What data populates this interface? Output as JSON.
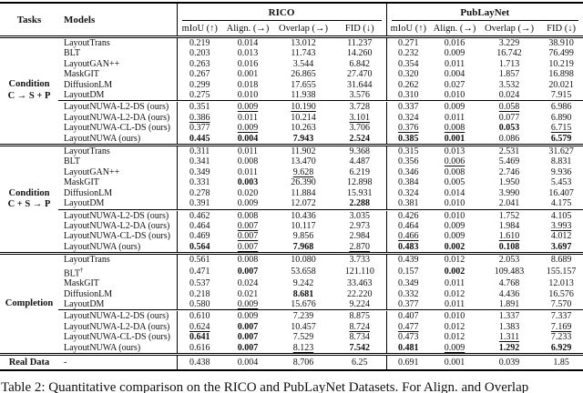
{
  "cell_encoding": "plain string = normal; prefix 'b:' = bold (best); prefix 'u:' = underlined (second best)",
  "table": {
    "header": {
      "tasks": "Tasks",
      "models": "Models",
      "datasets": [
        {
          "name": "RICO",
          "metrics": [
            "mIoU (↑)",
            "Align. (→)",
            "Overlap (→)",
            "FID (↓)"
          ]
        },
        {
          "name": "PubLayNet",
          "metrics": [
            "mIoU (↑)",
            "Align. (→)",
            "Overlap (→)",
            "FID (↓)"
          ]
        }
      ]
    },
    "groups": [
      {
        "task": [
          "Condition",
          "C → S + P"
        ],
        "baselines": [
          {
            "model": "LayoutTrans",
            "cells": [
              "0.219",
              "0.014",
              "13.012",
              "11.237",
              "0.271",
              "0.016",
              "3.229",
              "38.910"
            ]
          },
          {
            "model": "BLT",
            "cells": [
              "0.203",
              "0.013",
              "11.743",
              "14.260",
              "0.232",
              "0.009",
              "16.742",
              "76.499"
            ]
          },
          {
            "model": "LayoutGAN++",
            "cells": [
              "0.263",
              "0.016",
              "3.544",
              "6.842",
              "0.354",
              "0.011",
              "1.713",
              "10.219"
            ]
          },
          {
            "model": "MaskGIT",
            "cells": [
              "0.267",
              "0.001",
              "26.865",
              "27.470",
              "0.320",
              "0.004",
              "1.857",
              "16.898"
            ]
          },
          {
            "model": "DiffusionLM",
            "cells": [
              "0.299",
              "0.018",
              "17.655",
              "31.644",
              "0.262",
              "0.027",
              "3.532",
              "20.021"
            ]
          },
          {
            "model": "LayoutDM",
            "cells": [
              "0.275",
              "0.010",
              "11.938",
              "3.576",
              "0.310",
              "0.010",
              "0.024",
              "7.915"
            ]
          }
        ],
        "ours": [
          {
            "model": "LayoutNUWA-L2-DS (ours)",
            "cells": [
              "0.351",
              "u:0.009",
              "u:10.190",
              "3.728",
              "0.337",
              "0.009",
              "u:0.058",
              "6.986"
            ]
          },
          {
            "model": "LayoutNUWA-L2-DA (ours)",
            "cells": [
              "u:0.386",
              "0.011",
              "10.214",
              "u:3.101",
              "0.324",
              "0.011",
              "0.077",
              "6.890"
            ]
          },
          {
            "model": "LayoutNUWA-CL-DS (ours)",
            "cells": [
              "0.377",
              "u:0.009",
              "10.263",
              "3.706",
              "u:0.376",
              "u:0.008",
              "b:0.053",
              "u:6.715"
            ]
          },
          {
            "model": "LayoutNUWA (ours)",
            "cells": [
              "b:0.445",
              "b:0.004",
              "b:7.943",
              "b:2.524",
              "b:0.385",
              "b:0.001",
              "0.086",
              "b:6.579"
            ]
          }
        ]
      },
      {
        "task": [
          "Condition",
          "C + S → P"
        ],
        "baselines": [
          {
            "model": "LayoutTrans",
            "cells": [
              "0.311",
              "0.011",
              "11.902",
              "9.368",
              "0.315",
              "0.013",
              "2.531",
              "31.627"
            ]
          },
          {
            "model": "BLT",
            "cells": [
              "0.341",
              "0.008",
              "13.470",
              "4.487",
              "0.356",
              "u:0.006",
              "5.469",
              "8.831"
            ]
          },
          {
            "model": "LayoutGAN++",
            "cells": [
              "0.349",
              "0.011",
              "u:9.628",
              "6.219",
              "0.346",
              "0.008",
              "2.746",
              "9.936"
            ]
          },
          {
            "model": "MaskGIT",
            "cells": [
              "0.331",
              "b:0.003",
              "26.390",
              "12.898",
              "0.384",
              "0.005",
              "1.950",
              "5.453"
            ]
          },
          {
            "model": "DiffusionLM",
            "cells": [
              "0.278",
              "0.020",
              "11.884",
              "15.931",
              "0.324",
              "0.014",
              "3.990",
              "16.407"
            ]
          },
          {
            "model": "LayoutDM",
            "cells": [
              "0.391",
              "0.009",
              "12.072",
              "b:2.288",
              "0.381",
              "0.010",
              "2.041",
              "4.175"
            ]
          }
        ],
        "ours": [
          {
            "model": "LayoutNUWA-L2-DS (ours)",
            "cells": [
              "0.462",
              "0.008",
              "10.436",
              "3.035",
              "0.426",
              "0.010",
              "1.752",
              "4.105"
            ]
          },
          {
            "model": "LayoutNUWA-L2-DA (ours)",
            "cells": [
              "0.464",
              "u:0.007",
              "10.117",
              "2.973",
              "0.464",
              "0.009",
              "1.984",
              "u:3.993"
            ]
          },
          {
            "model": "LayoutNUWA-CL-DS (ours)",
            "cells": [
              "0.469",
              "u:0.007",
              "9.856",
              "2.984",
              "u:0.466",
              "0.009",
              "u:1.610",
              "4.012"
            ]
          },
          {
            "model": "LayoutNUWA (ours)",
            "cells": [
              "b:0.564",
              "u:0.007",
              "b:7.968",
              "u:2.870",
              "b:0.483",
              "b:0.002",
              "b:0.108",
              "b:3.697"
            ]
          }
        ]
      },
      {
        "task": [
          "Completion"
        ],
        "baselines": [
          {
            "model": "LayoutTrans",
            "cells": [
              "0.561",
              "0.008",
              "10.080",
              "3.733",
              "0.439",
              "0.012",
              "2.053",
              "8.689"
            ]
          },
          {
            "model": "BLT",
            "sup": "†",
            "cells": [
              "0.471",
              "b:0.007",
              "53.658",
              "121.110",
              "0.157",
              "b:0.002",
              "109.483",
              "155.157"
            ]
          },
          {
            "model": "MaskGIT",
            "cells": [
              "0.537",
              "0.024",
              "9.242",
              "33.463",
              "0.349",
              "0.011",
              "4.768",
              "12.013"
            ]
          },
          {
            "model": "DiffusionLM",
            "cells": [
              "0.218",
              "0.021",
              "b:8.681",
              "22.220",
              "0.332",
              "0.012",
              "4.436",
              "16.576"
            ]
          },
          {
            "model": "LayoutDM",
            "cells": [
              "0.580",
              "u:0.009",
              "15.676",
              "9.224",
              "0.377",
              "0.011",
              "1.891",
              "7.570"
            ]
          }
        ],
        "ours": [
          {
            "model": "LayoutNUWA-L2-DS (ours)",
            "cells": [
              "0.610",
              "0.009",
              "7.239",
              "8.875",
              "0.407",
              "0.010",
              "1.337",
              "7.337"
            ]
          },
          {
            "model": "LayoutNUWA-L2-DA (ours)",
            "cells": [
              "u:0.624",
              "b:0.007",
              "10.457",
              "u:8.724",
              "u:0.477",
              "0.012",
              "1.383",
              "u:7.169"
            ]
          },
          {
            "model": "LayoutNUWA-CL-DS (ours)",
            "cells": [
              "b:0.641",
              "b:0.007",
              "7.529",
              "8.734",
              "0.473",
              "0.012",
              "u:1.311",
              "7.233"
            ]
          },
          {
            "model": "LayoutNUWA (ours)",
            "cells": [
              "0.616",
              "b:0.007",
              "u:8.123",
              "b:7.542",
              "b:0.481",
              "u:0.009",
              "b:1.292",
              "b:6.929"
            ]
          }
        ]
      }
    ],
    "real_data": {
      "task": "Real Data",
      "model": "-",
      "cells": [
        "0.438",
        "0.004",
        "8.706",
        "6.25",
        "0.691",
        "0.001",
        "0.039",
        "1.85"
      ]
    }
  },
  "caption": "Table 2: Quantitative comparison on the RICO and PubLayNet Datasets. For Align. and Overlap"
}
